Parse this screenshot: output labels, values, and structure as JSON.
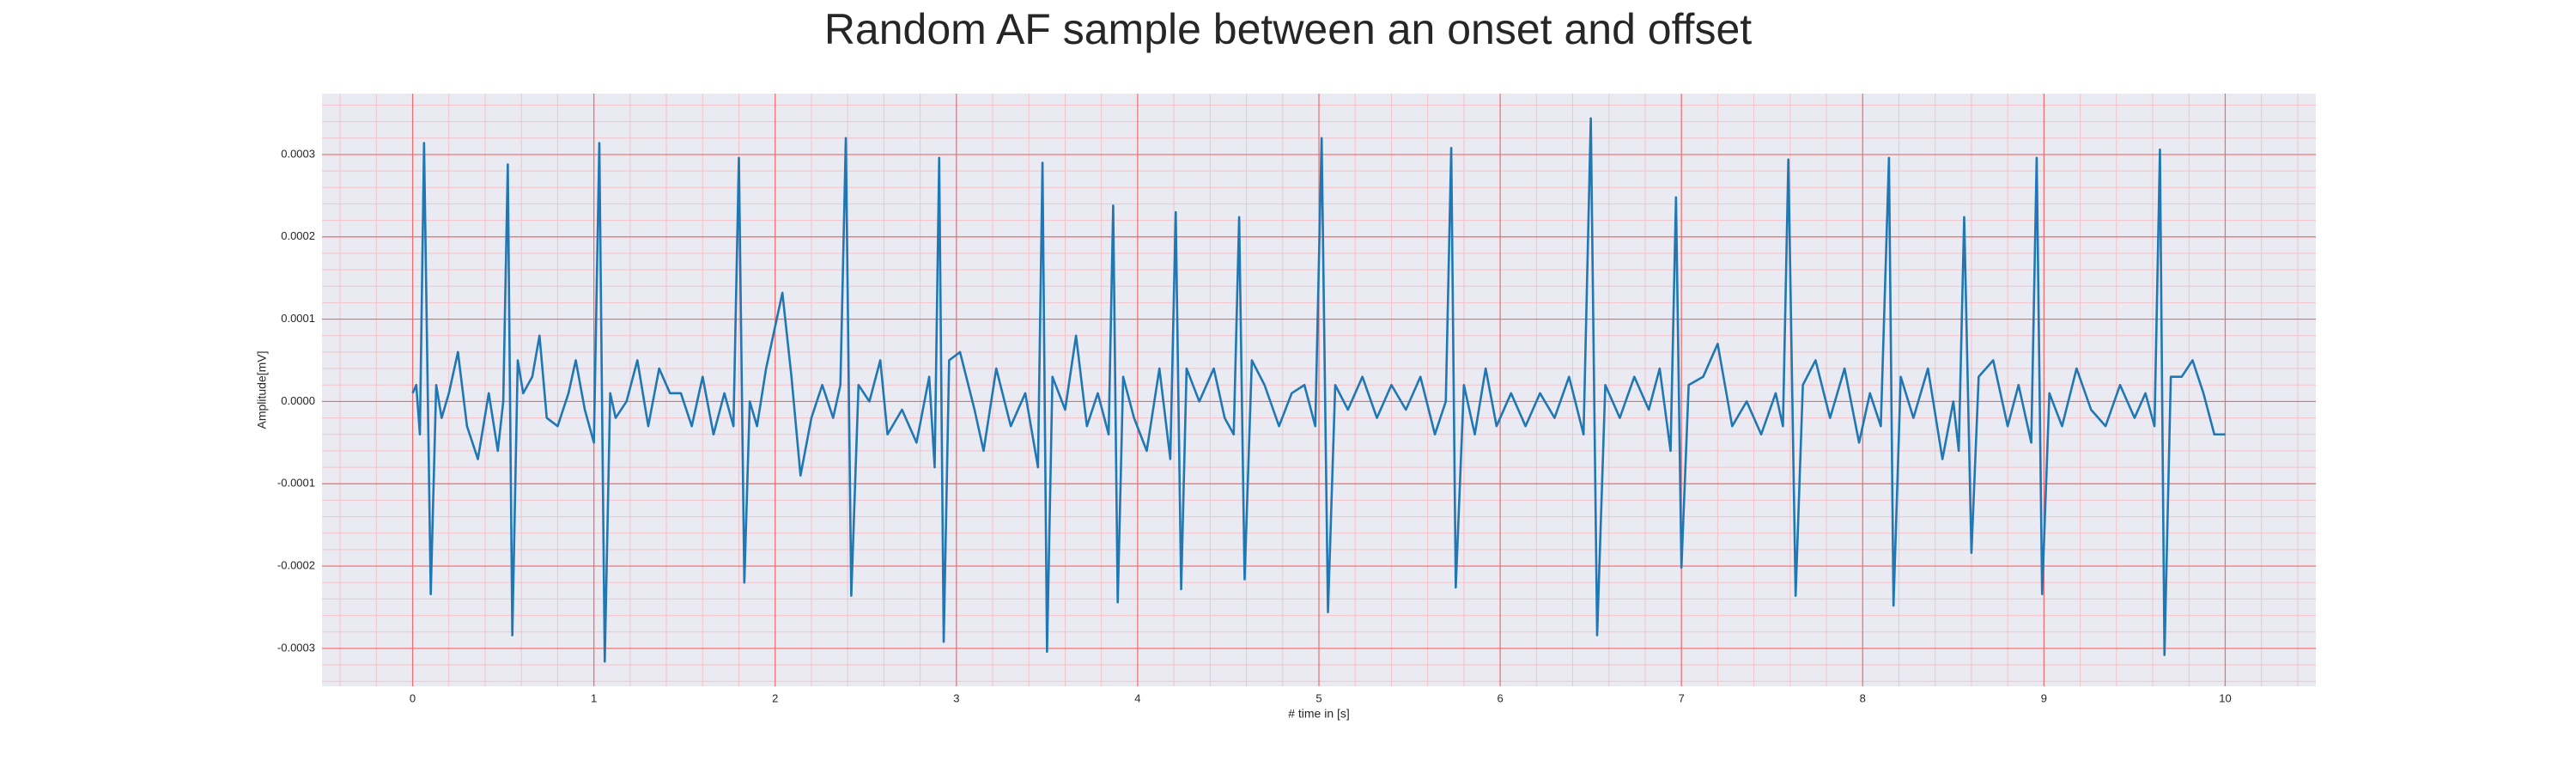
{
  "chart_data": {
    "type": "line",
    "title": "Random AF sample between an onset and offset",
    "x_label": "# time in [s]",
    "y_label": "Amplitude[mV]",
    "color": "#1f77b4",
    "grid": true,
    "minor_grid": true,
    "grid_color": "#f26b6b",
    "minor_grid_color": "#f5c2c8",
    "background": "#eaeaf2",
    "xlim": [
      -0.5,
      10.5
    ],
    "ylim": [
      -0.000346,
      0.000374
    ],
    "xticks": [
      0,
      1,
      2,
      3,
      4,
      5,
      6,
      7,
      8,
      9,
      10
    ],
    "yticks": [
      0.0003,
      0.0002,
      0.0001,
      {
        "value": 0,
        "label": "0.0000"
      },
      -0.0001,
      -0.0002,
      -0.0003
    ],
    "x": [
      0.0,
      0.02,
      0.04,
      0.063,
      0.1,
      0.13,
      0.16,
      0.2,
      0.25,
      0.3,
      0.36,
      0.42,
      0.47,
      0.5,
      0.525,
      0.55,
      0.58,
      0.61,
      0.66,
      0.7,
      0.74,
      0.8,
      0.86,
      0.9,
      0.95,
      1.0,
      1.03,
      1.06,
      1.09,
      1.12,
      1.18,
      1.24,
      1.3,
      1.36,
      1.42,
      1.48,
      1.54,
      1.6,
      1.66,
      1.72,
      1.77,
      1.8,
      1.83,
      1.86,
      1.9,
      1.95,
      2.04,
      2.09,
      2.14,
      2.2,
      2.26,
      2.32,
      2.36,
      2.39,
      2.42,
      2.46,
      2.52,
      2.58,
      2.62,
      2.7,
      2.78,
      2.85,
      2.88,
      2.905,
      2.93,
      2.96,
      3.02,
      3.1,
      3.15,
      3.22,
      3.3,
      3.38,
      3.45,
      3.475,
      3.5,
      3.53,
      3.6,
      3.66,
      3.72,
      3.78,
      3.84,
      3.865,
      3.89,
      3.92,
      3.98,
      4.05,
      4.12,
      4.18,
      4.21,
      4.24,
      4.27,
      4.34,
      4.42,
      4.48,
      4.53,
      4.56,
      4.59,
      4.63,
      4.7,
      4.78,
      4.85,
      4.92,
      4.98,
      5.015,
      5.05,
      5.09,
      5.16,
      5.24,
      5.32,
      5.4,
      5.48,
      5.56,
      5.64,
      5.7,
      5.73,
      5.755,
      5.8,
      5.86,
      5.92,
      5.98,
      6.06,
      6.14,
      6.22,
      6.3,
      6.38,
      6.46,
      6.5,
      6.535,
      6.58,
      6.66,
      6.74,
      6.82,
      6.88,
      6.94,
      6.97,
      7.0,
      7.04,
      7.12,
      7.2,
      7.28,
      7.36,
      7.44,
      7.52,
      7.56,
      7.59,
      7.63,
      7.67,
      7.74,
      7.82,
      7.9,
      7.98,
      8.04,
      8.1,
      8.145,
      8.17,
      8.21,
      8.28,
      8.36,
      8.44,
      8.5,
      8.53,
      8.56,
      8.6,
      8.64,
      8.72,
      8.8,
      8.86,
      8.93,
      8.96,
      8.99,
      9.03,
      9.1,
      9.18,
      9.26,
      9.34,
      9.42,
      9.5,
      9.56,
      9.61,
      9.64,
      9.665,
      9.7,
      9.76,
      9.82,
      9.88,
      9.94,
      10.0
    ],
    "values": [
      1e-05,
      2e-05,
      -4e-05,
      0.000314,
      -0.000234,
      2e-05,
      -2e-05,
      1e-05,
      6e-05,
      -3e-05,
      -7e-05,
      1e-05,
      -6e-05,
      0,
      0.000288,
      -0.000284,
      5e-05,
      1e-05,
      3e-05,
      8e-05,
      -2e-05,
      -3e-05,
      1e-05,
      5e-05,
      -1e-05,
      -5e-05,
      0.000314,
      -0.000316,
      1e-05,
      -2e-05,
      0,
      5e-05,
      -3e-05,
      4e-05,
      1e-05,
      1e-05,
      -3e-05,
      3e-05,
      -4e-05,
      1e-05,
      -3e-05,
      0.000296,
      -0.00022,
      0,
      -3e-05,
      4e-05,
      0.000132,
      3e-05,
      -9e-05,
      -2e-05,
      2e-05,
      -2e-05,
      2e-05,
      0.00032,
      -0.000236,
      2e-05,
      0,
      5e-05,
      -4e-05,
      -1e-05,
      -5e-05,
      3e-05,
      -8e-05,
      0.000296,
      -0.000292,
      5e-05,
      6e-05,
      -1e-05,
      -6e-05,
      4e-05,
      -3e-05,
      1e-05,
      -8e-05,
      0.00029,
      -0.000304,
      3e-05,
      -1e-05,
      8e-05,
      -3e-05,
      1e-05,
      -4e-05,
      0.000238,
      -0.000244,
      3e-05,
      -2e-05,
      -6e-05,
      4e-05,
      -7e-05,
      0.00023,
      -0.000228,
      4e-05,
      0,
      4e-05,
      -2e-05,
      -4e-05,
      0.000224,
      -0.000216,
      5e-05,
      2e-05,
      -3e-05,
      1e-05,
      2e-05,
      -3e-05,
      0.00032,
      -0.000256,
      2e-05,
      -1e-05,
      3e-05,
      -2e-05,
      2e-05,
      -1e-05,
      3e-05,
      -4e-05,
      0,
      0.000308,
      -0.000226,
      2e-05,
      -4e-05,
      4e-05,
      -3e-05,
      1e-05,
      -3e-05,
      1e-05,
      -2e-05,
      3e-05,
      -4e-05,
      0.000344,
      -0.000284,
      2e-05,
      -2e-05,
      3e-05,
      -1e-05,
      4e-05,
      -6e-05,
      0.000248,
      -0.000202,
      2e-05,
      3e-05,
      7e-05,
      -3e-05,
      0,
      -4e-05,
      1e-05,
      -3e-05,
      0.000294,
      -0.000236,
      2e-05,
      5e-05,
      -2e-05,
      4e-05,
      -5e-05,
      1e-05,
      -3e-05,
      0.000296,
      -0.000248,
      3e-05,
      -2e-05,
      4e-05,
      -7e-05,
      0,
      -6e-05,
      0.000224,
      -0.000184,
      3e-05,
      5e-05,
      -3e-05,
      2e-05,
      -5e-05,
      0.000296,
      -0.000234,
      1e-05,
      -3e-05,
      4e-05,
      -1e-05,
      -3e-05,
      2e-05,
      -2e-05,
      1e-05,
      -3e-05,
      0.000306,
      -0.000308,
      3e-05,
      3e-05,
      5e-05,
      1e-05,
      -4e-05,
      -4e-05
    ]
  }
}
